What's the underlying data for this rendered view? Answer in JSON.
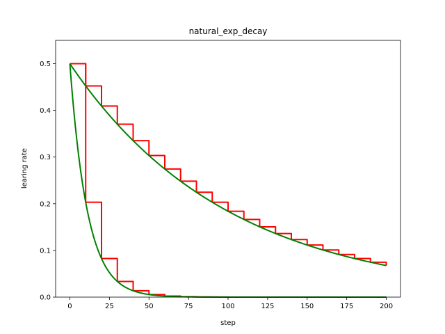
{
  "chart_data": {
    "type": "line",
    "title": "natural_exp_decay",
    "xlabel": "step",
    "ylabel": "learing rate",
    "xlim": [
      -9,
      209
    ],
    "ylim": [
      0,
      0.55
    ],
    "xticks": [
      0,
      25,
      50,
      75,
      100,
      125,
      150,
      175,
      200
    ],
    "yticks": [
      0.0,
      0.1,
      0.2,
      0.3,
      0.4,
      0.5
    ],
    "grid": false,
    "legend": "none",
    "series": [
      {
        "kind": "staircase",
        "color": "#ff0000",
        "initial": 0.5,
        "rate": 0.01,
        "decay_steps": 10,
        "x_max": 200
      },
      {
        "kind": "smooth",
        "color": "#008000",
        "initial": 0.5,
        "rate": 0.01,
        "x_max": 200
      },
      {
        "kind": "staircase",
        "color": "#ff0000",
        "initial": 0.5,
        "rate": 0.09,
        "decay_steps": 10,
        "x_max": 200
      },
      {
        "kind": "smooth",
        "color": "#008000",
        "initial": 0.5,
        "rate": 0.09,
        "x_max": 200
      }
    ]
  }
}
